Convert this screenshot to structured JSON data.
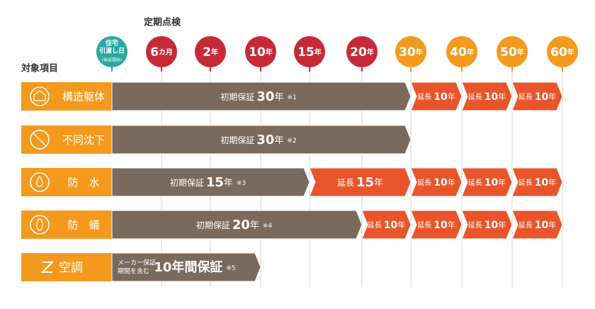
{
  "header": {
    "title": "定期点検",
    "items_title": "対象項目"
  },
  "milestones": [
    {
      "lines": [
        "住宅",
        "引渡し日"
      ],
      "note": "(保証開始)"
    },
    {
      "num": "6",
      "unit": "カ月"
    },
    {
      "num": "2",
      "unit": "年"
    },
    {
      "num": "10",
      "unit": "年"
    },
    {
      "num": "15",
      "unit": "年"
    },
    {
      "num": "20",
      "unit": "年"
    },
    {
      "num": "30",
      "unit": "年"
    },
    {
      "num": "40",
      "unit": "年"
    },
    {
      "num": "50",
      "unit": "年"
    },
    {
      "num": "60",
      "unit": "年"
    }
  ],
  "rows": [
    {
      "label": "構造躯体",
      "segments": [
        {
          "label": "初期保証",
          "num": "30",
          "unit": "年",
          "note": "※1"
        },
        {
          "label": "延長",
          "num": "10",
          "unit": "年"
        },
        {
          "label": "延長",
          "num": "10",
          "unit": "年"
        },
        {
          "label": "延長",
          "num": "10",
          "unit": "年"
        }
      ]
    },
    {
      "label": "不同沈下",
      "segments": [
        {
          "label": "初期保証",
          "num": "30",
          "unit": "年",
          "note": "※2"
        }
      ]
    },
    {
      "label": "防　水",
      "segments": [
        {
          "label": "初期保証",
          "num": "15",
          "unit": "年",
          "note": "※3"
        },
        {
          "label": "延長",
          "num": "15",
          "unit": "年"
        },
        {
          "label": "延長",
          "num": "10",
          "unit": "年"
        },
        {
          "label": "延長",
          "num": "10",
          "unit": "年"
        },
        {
          "label": "延長",
          "num": "10",
          "unit": "年"
        }
      ]
    },
    {
      "label": "防　蟻",
      "segments": [
        {
          "label": "初期保証",
          "num": "20",
          "unit": "年",
          "note": "※4"
        },
        {
          "label": "延長",
          "num": "10",
          "unit": "年"
        },
        {
          "label": "延長",
          "num": "10",
          "unit": "年"
        },
        {
          "label": "延長",
          "num": "10",
          "unit": "年"
        },
        {
          "label": "延長",
          "num": "10",
          "unit": "年"
        }
      ]
    },
    {
      "label": "空調",
      "segments": [
        {
          "pre": [
            "メーカー保証",
            "期間を含む"
          ],
          "num": "10年間保証",
          "note": "※5"
        }
      ]
    }
  ]
}
